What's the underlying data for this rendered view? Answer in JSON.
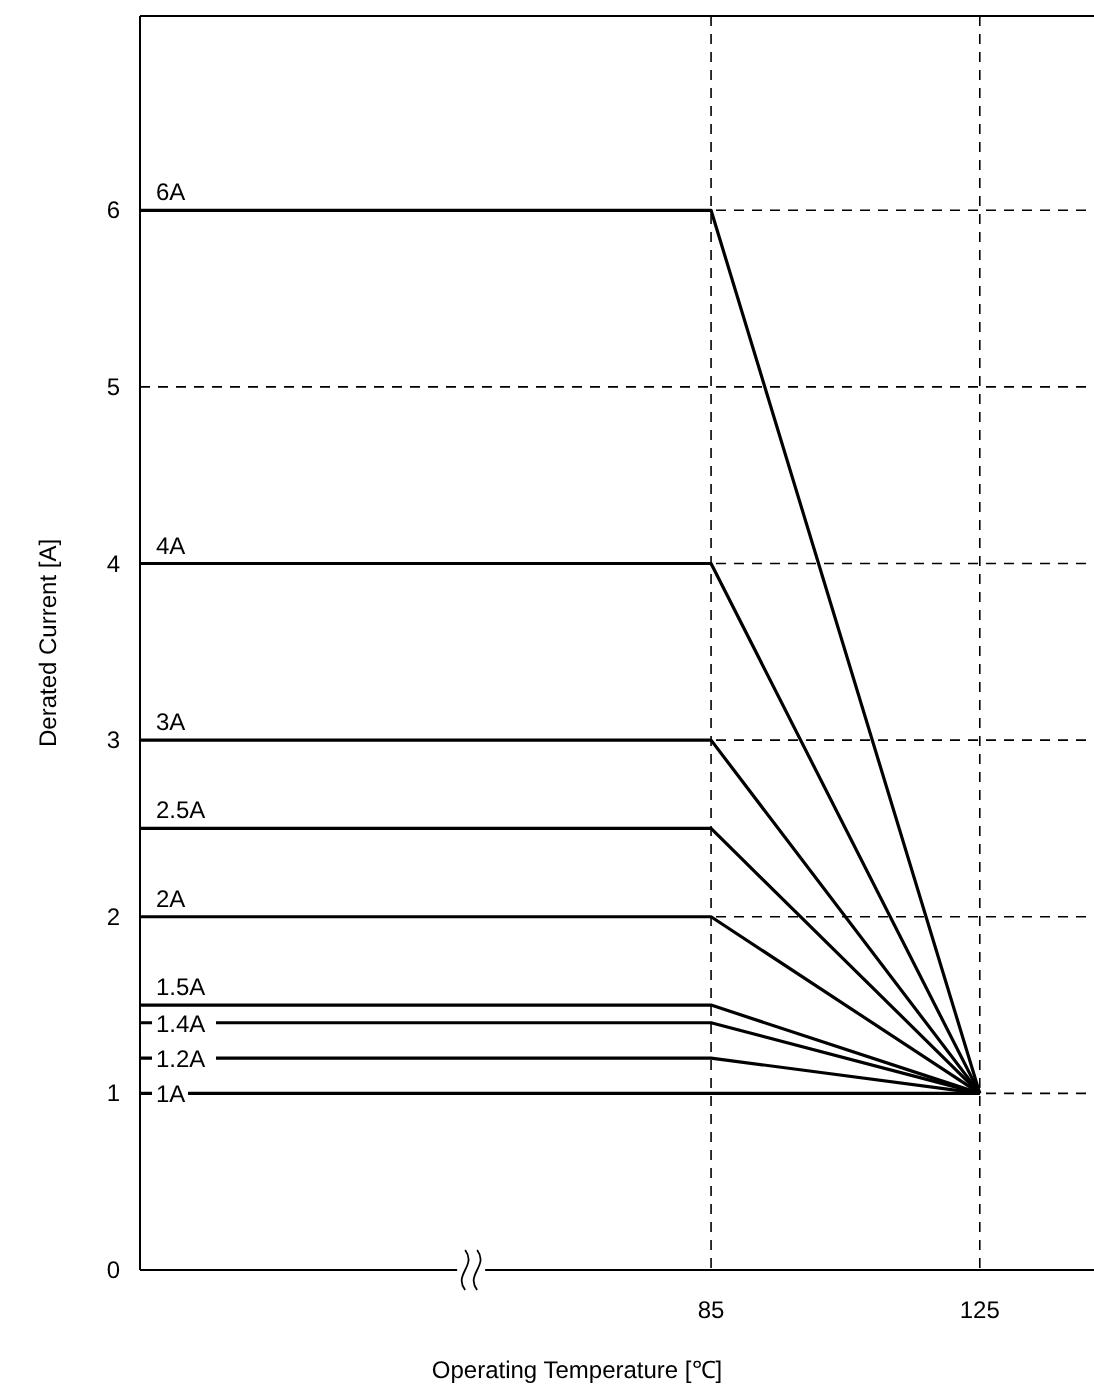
{
  "chart_data": {
    "type": "line",
    "xlabel": "Operating Temperature [℃]",
    "ylabel": "Derated Current [A]",
    "x": [
      0,
      85,
      125
    ],
    "xlim": [
      0,
      142
    ],
    "xticks": [
      85,
      125
    ],
    "ylim": [
      0,
      7.1
    ],
    "yticks": [
      0,
      1,
      2,
      3,
      4,
      5,
      6
    ],
    "grid": true,
    "series": [
      {
        "name": "6A",
        "color": "#000000",
        "values": [
          6,
          6,
          1
        ]
      },
      {
        "name": "4A",
        "color": "#000000",
        "values": [
          4,
          4,
          1
        ]
      },
      {
        "name": "3A",
        "color": "#000000",
        "values": [
          3,
          3,
          1
        ]
      },
      {
        "name": "2.5A",
        "color": "#000000",
        "values": [
          2.5,
          2.5,
          1
        ]
      },
      {
        "name": "2A",
        "color": "#000000",
        "values": [
          2,
          2,
          1
        ]
      },
      {
        "name": "1.5A",
        "color": "#000000",
        "values": [
          1.5,
          1.5,
          1
        ]
      },
      {
        "name": "1.4A",
        "color": "#000000",
        "values": [
          1.4,
          1.4,
          1
        ]
      },
      {
        "name": "1.2A",
        "color": "#000000",
        "values": [
          1.2,
          1.2,
          1
        ]
      },
      {
        "name": "1A",
        "color": "#000000",
        "values": [
          1,
          1,
          1
        ]
      }
    ]
  }
}
